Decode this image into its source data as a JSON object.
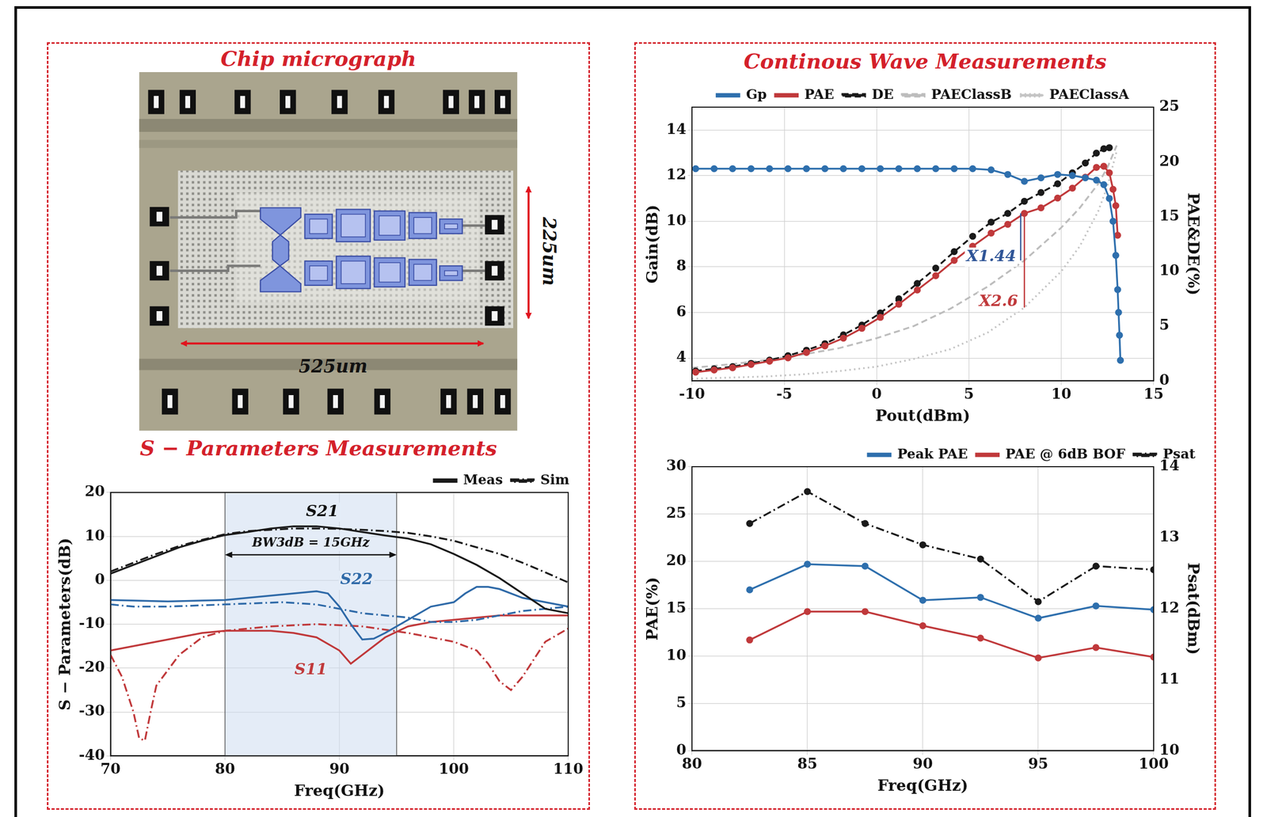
{
  "micrograph": {
    "title": "Chip micrograph",
    "width_label": "525um",
    "height_label": "225um"
  },
  "group_title": "Continous Wave Measurements",
  "chart_data": [
    {
      "type": "line",
      "title": "S − Parameters Measurements",
      "x_label": "Freq(GHz)",
      "y_label": "S − Parameters(dB)",
      "xlim": [
        70,
        110
      ],
      "xticks": [
        70,
        80,
        90,
        100,
        110
      ],
      "ylim": [
        -40,
        20
      ],
      "yticks": [
        -40,
        -30,
        -20,
        -10,
        0,
        10,
        20
      ],
      "grid": true,
      "legend": "top-right",
      "band": {
        "x": [
          80,
          95
        ],
        "arrow_y": 5.8
      },
      "annotations": [
        {
          "text": "BW3dB = 15GHz",
          "x": 87.5,
          "y": 8.4,
          "color": "#111111"
        },
        {
          "text": "S21",
          "x": 88.5,
          "y": 15.5,
          "color": "#111111"
        },
        {
          "text": "S22",
          "x": 91.5,
          "y": 0,
          "color": "#2f6aa8"
        },
        {
          "text": "S11",
          "x": 87.5,
          "y": -20.5,
          "color": "#c0393b"
        }
      ],
      "series": [
        {
          "name": "Meas",
          "color": "#1a1a1a",
          "line_style": "solid",
          "x": [
            70,
            72,
            74,
            76,
            78,
            80,
            82,
            84,
            86,
            88,
            90,
            92,
            94,
            96,
            98,
            100,
            102,
            104,
            106,
            108,
            110
          ],
          "values": [
            1.5,
            3.5,
            5.5,
            7.5,
            9,
            10.3,
            11,
            11.8,
            12.3,
            12.3,
            11.8,
            11,
            10.2,
            9.5,
            8.2,
            6,
            3.5,
            0.5,
            -3,
            -6.5,
            -7.5
          ]
        },
        {
          "name": "Sim",
          "color": "#1a1a1a",
          "line_style": "dashdot",
          "x": [
            70,
            72,
            74,
            76,
            78,
            80,
            82,
            84,
            86,
            88,
            90,
            92,
            94,
            96,
            98,
            100,
            102,
            104,
            106,
            108,
            110
          ],
          "values": [
            2,
            4,
            6,
            7.8,
            9.2,
            10.5,
            11.2,
            11.5,
            11.8,
            11.8,
            11.7,
            11.5,
            11.2,
            10.8,
            10,
            9,
            7.5,
            6,
            4,
            1.8,
            -0.5
          ]
        },
        {
          "name": "Meas",
          "color": "#2f6aa8",
          "line_style": "solid",
          "x": [
            70,
            75,
            80,
            84,
            86,
            88,
            89,
            90,
            91,
            92,
            93,
            94,
            96,
            98,
            100,
            101,
            102,
            103,
            104,
            106,
            108,
            110
          ],
          "values": [
            -4.5,
            -4.8,
            -4.5,
            -3.5,
            -3,
            -2.5,
            -3,
            -6,
            -10,
            -13.5,
            -13.3,
            -12,
            -9,
            -6,
            -5,
            -3,
            -1.5,
            -1.5,
            -2,
            -4,
            -5,
            -6
          ]
        },
        {
          "name": "Sim",
          "color": "#2f6aa8",
          "line_style": "dashdot",
          "x": [
            70,
            72,
            75,
            80,
            85,
            88,
            90,
            92,
            94,
            96,
            98,
            100,
            102,
            104,
            106,
            108,
            110
          ],
          "values": [
            -5.5,
            -6,
            -6,
            -5.5,
            -5,
            -5.5,
            -6.5,
            -7.5,
            -8,
            -8.5,
            -9.5,
            -9.5,
            -9,
            -8,
            -7,
            -6.5,
            -6
          ]
        },
        {
          "name": "Meas",
          "color": "#c0393b",
          "line_style": "solid",
          "x": [
            70,
            72,
            74,
            76,
            78,
            80,
            82,
            84,
            86,
            88,
            90,
            91,
            92,
            94,
            96,
            98,
            100,
            102,
            104,
            106,
            108,
            110
          ],
          "values": [
            -16,
            -15,
            -14,
            -13,
            -12,
            -11.5,
            -11.5,
            -11.5,
            -12,
            -13,
            -16,
            -19,
            -17,
            -13,
            -10.5,
            -9.5,
            -9,
            -8.5,
            -8,
            -8,
            -8,
            -8
          ]
        },
        {
          "name": "Sim",
          "color": "#c0393b",
          "line_style": "dashdot",
          "x": [
            70,
            71,
            72,
            72.5,
            73,
            73.5,
            74,
            76,
            78,
            80,
            84,
            88,
            92,
            96,
            100,
            102,
            103,
            104,
            105,
            106,
            107,
            108,
            110
          ],
          "values": [
            -17,
            -22,
            -30,
            -36,
            -36.5,
            -30,
            -24,
            -17,
            -13,
            -11.5,
            -10.5,
            -10,
            -10.5,
            -12,
            -14,
            -16,
            -19,
            -23,
            -25,
            -22,
            -18,
            -14,
            -11
          ]
        }
      ]
    },
    {
      "type": "line",
      "x_label": "Pout(dBm)",
      "y_label": "Gain(dB)",
      "y2_label": "PAE&DE(%)",
      "xlim": [
        -10,
        15
      ],
      "xticks": [
        -10,
        -5,
        0,
        5,
        10,
        15
      ],
      "ylim": [
        3,
        15
      ],
      "yticks": [
        4,
        6,
        8,
        10,
        12,
        14
      ],
      "y2lim": [
        0,
        25
      ],
      "y2ticks": [
        0,
        5,
        10,
        15,
        20,
        25
      ],
      "grid": true,
      "legend": "top",
      "annotations": [
        {
          "text": "X1.44",
          "x": 6.2,
          "y": 11.3,
          "axis": "y2",
          "color": "#2f5597",
          "line_x": 7.8,
          "line_y": [
            11.0,
            15.3
          ]
        },
        {
          "text": "X2.6",
          "x": 6.6,
          "y": 7.2,
          "axis": "y2",
          "color": "#c0393b",
          "line_x": 8.0,
          "line_y": [
            6.7,
            15.5
          ]
        }
      ],
      "series": [
        {
          "name": "Gp",
          "color": "#2e6fad",
          "marker": "circle",
          "line_style": "solid",
          "x": [
            -9.8,
            -8.8,
            -7.8,
            -6.8,
            -5.8,
            -4.8,
            -3.8,
            -2.8,
            -1.8,
            -0.8,
            0.2,
            1.2,
            2.2,
            3.2,
            4.2,
            5.2,
            6.2,
            7.1,
            8.0,
            8.9,
            9.8,
            10.6,
            11.3,
            11.9,
            12.3,
            12.6,
            12.8,
            12.95,
            13.05,
            13.1,
            13.15,
            13.2
          ],
          "values": [
            12.3,
            12.3,
            12.3,
            12.3,
            12.3,
            12.3,
            12.3,
            12.3,
            12.3,
            12.3,
            12.3,
            12.3,
            12.3,
            12.3,
            12.3,
            12.3,
            12.25,
            12.05,
            11.75,
            11.9,
            12.05,
            12.0,
            11.9,
            11.8,
            11.6,
            11.0,
            10.0,
            8.5,
            7.0,
            6.0,
            5.0,
            3.9
          ]
        },
        {
          "name": "PAE",
          "color": "#c0393b",
          "marker": "circle",
          "line_style": "solid",
          "axis": "y2",
          "x": [
            -9.8,
            -8.8,
            -7.8,
            -6.8,
            -5.8,
            -4.8,
            -3.8,
            -2.8,
            -1.8,
            -0.8,
            0.2,
            1.2,
            2.2,
            3.2,
            4.2,
            5.2,
            6.2,
            7.1,
            8.0,
            8.9,
            9.8,
            10.6,
            11.3,
            11.9,
            12.3,
            12.6,
            12.8,
            12.95,
            13.05
          ],
          "values": [
            0.8,
            1.0,
            1.2,
            1.5,
            1.8,
            2.1,
            2.6,
            3.2,
            3.9,
            4.8,
            5.8,
            7.0,
            8.3,
            9.6,
            11.0,
            12.3,
            13.5,
            14.3,
            15.3,
            15.8,
            16.7,
            17.6,
            18.6,
            19.5,
            19.6,
            19.0,
            17.5,
            16.0,
            13.3
          ]
        },
        {
          "name": "DE",
          "color": "#1a1a1a",
          "marker": "circle",
          "line_style": "dashed",
          "axis": "y2",
          "x": [
            -9.8,
            -8.8,
            -7.8,
            -6.8,
            -5.8,
            -4.8,
            -3.8,
            -2.8,
            -1.8,
            -0.8,
            0.2,
            1.2,
            2.2,
            3.2,
            4.2,
            5.2,
            6.2,
            7.1,
            8.0,
            8.9,
            9.8,
            10.6,
            11.3,
            11.9,
            12.3,
            12.6
          ],
          "values": [
            0.9,
            1.1,
            1.3,
            1.6,
            1.9,
            2.3,
            2.8,
            3.4,
            4.2,
            5.1,
            6.2,
            7.5,
            8.9,
            10.3,
            11.8,
            13.2,
            14.5,
            15.3,
            16.4,
            17.2,
            18.0,
            19.0,
            19.9,
            20.8,
            21.2,
            21.3
          ]
        },
        {
          "name": "PAEClassB",
          "color": "#bdbdbd",
          "marker": "none",
          "line_style": "dashed",
          "axis": "y2",
          "x": [
            -10,
            -8,
            -6,
            -4,
            -2,
            0,
            2,
            4,
            6,
            8,
            10,
            11,
            12,
            12.5,
            13
          ],
          "values": [
            1.2,
            1.5,
            1.9,
            2.4,
            3.0,
            3.9,
            5.0,
            6.6,
            8.6,
            11.0,
            14.0,
            15.8,
            18.0,
            19.5,
            21.5
          ]
        },
        {
          "name": "PAEClassA",
          "color": "#c4c4c4",
          "marker": "none",
          "line_style": "dotted",
          "axis": "y2",
          "x": [
            -10,
            -8,
            -6,
            -4,
            -2,
            0,
            2,
            4,
            6,
            8,
            10,
            11,
            12,
            12.5,
            13
          ],
          "values": [
            0.2,
            0.3,
            0.4,
            0.6,
            0.9,
            1.3,
            2.0,
            2.9,
            4.4,
            6.7,
            10.0,
            12.3,
            15.5,
            17.8,
            21.0
          ]
        }
      ]
    },
    {
      "type": "line",
      "x_label": "Freq(GHz)",
      "y_label": "PAE(%)",
      "y2_label": "Psat(dBm)",
      "xlim": [
        80,
        100
      ],
      "xticks": [
        80,
        85,
        90,
        95,
        100
      ],
      "ylim": [
        0,
        30
      ],
      "yticks": [
        0,
        5,
        10,
        15,
        20,
        25,
        30
      ],
      "y2lim": [
        10,
        14
      ],
      "y2ticks": [
        10,
        11,
        12,
        13,
        14
      ],
      "grid": true,
      "legend": "top-right",
      "x": [
        82.5,
        85,
        87.5,
        90,
        92.5,
        95,
        97.5,
        100
      ],
      "series": [
        {
          "name": "Peak PAE",
          "color": "#2e6fad",
          "marker": "circle",
          "line_style": "solid",
          "values": [
            17,
            19.7,
            19.5,
            15.9,
            16.2,
            14,
            15.3,
            14.9
          ]
        },
        {
          "name": "PAE @ 6dB BOF",
          "color": "#c0393b",
          "marker": "circle",
          "line_style": "solid",
          "values": [
            11.7,
            14.7,
            14.7,
            13.2,
            11.9,
            9.8,
            10.9,
            9.9
          ]
        },
        {
          "name": "Psat",
          "color": "#1a1a1a",
          "marker": "circle",
          "line_style": "dashdot",
          "axis": "y2",
          "values": [
            13.2,
            13.65,
            13.2,
            12.9,
            12.7,
            12.1,
            12.6,
            12.55
          ]
        }
      ]
    }
  ]
}
